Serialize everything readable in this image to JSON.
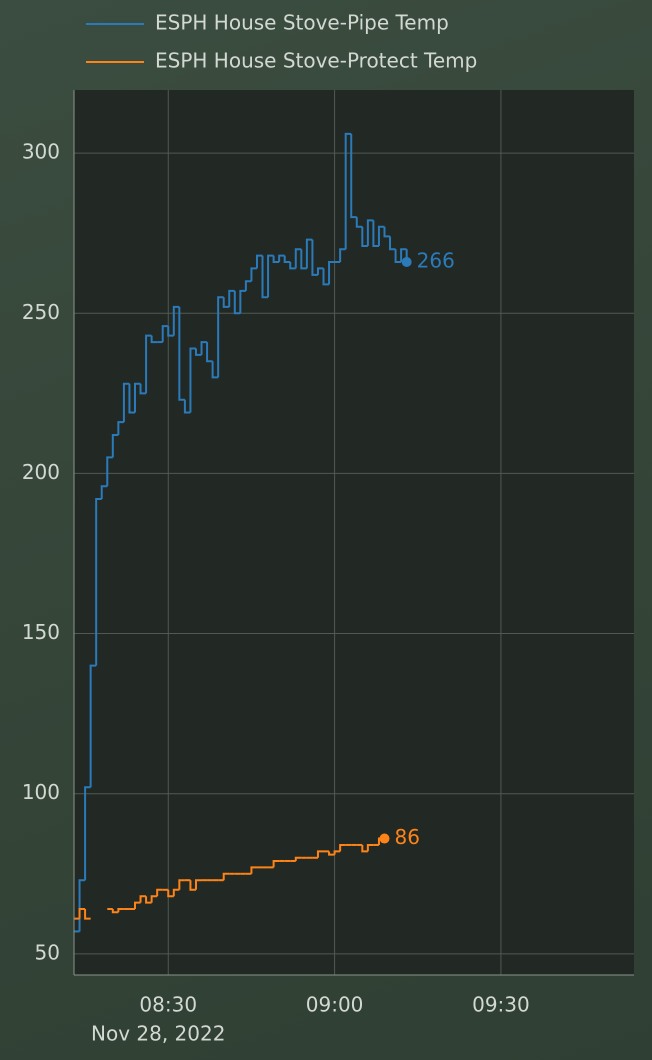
{
  "chart_data": {
    "type": "line",
    "step": true,
    "x": [
      "2022-11-28 08:13",
      "2022-11-28 08:14",
      "2022-11-28 08:15",
      "2022-11-28 08:16",
      "2022-11-28 08:17",
      "2022-11-28 08:18",
      "2022-11-28 08:19",
      "2022-11-28 08:20",
      "2022-11-28 08:21",
      "2022-11-28 08:22",
      "2022-11-28 08:23",
      "2022-11-28 08:24",
      "2022-11-28 08:25",
      "2022-11-28 08:26",
      "2022-11-28 08:27",
      "2022-11-28 08:28",
      "2022-11-28 08:29",
      "2022-11-28 08:30",
      "2022-11-28 08:31",
      "2022-11-28 08:32",
      "2022-11-28 08:33",
      "2022-11-28 08:34",
      "2022-11-28 08:35",
      "2022-11-28 08:36",
      "2022-11-28 08:37",
      "2022-11-28 08:38",
      "2022-11-28 08:39",
      "2022-11-28 08:40",
      "2022-11-28 08:41",
      "2022-11-28 08:42",
      "2022-11-28 08:43",
      "2022-11-28 08:44",
      "2022-11-28 08:45",
      "2022-11-28 08:46",
      "2022-11-28 08:47",
      "2022-11-28 08:48",
      "2022-11-28 08:49",
      "2022-11-28 08:50",
      "2022-11-28 08:51",
      "2022-11-28 08:52",
      "2022-11-28 08:53",
      "2022-11-28 08:54",
      "2022-11-28 08:55",
      "2022-11-28 08:56",
      "2022-11-28 08:57",
      "2022-11-28 08:58",
      "2022-11-28 08:59",
      "2022-11-28 09:00",
      "2022-11-28 09:01",
      "2022-11-28 09:02",
      "2022-11-28 09:03",
      "2022-11-28 09:04",
      "2022-11-28 09:05",
      "2022-11-28 09:06",
      "2022-11-28 09:07",
      "2022-11-28 09:08",
      "2022-11-28 09:09",
      "2022-11-28 09:10",
      "2022-11-28 09:11",
      "2022-11-28 09:12",
      "2022-11-28 09:13"
    ],
    "series": [
      {
        "name": "ESPH House Stove-Pipe Temp",
        "color": "#2b7bba",
        "values": [
          57,
          73,
          102,
          140,
          192,
          196,
          205,
          212,
          216,
          228,
          219,
          228,
          225,
          243,
          241,
          241,
          246,
          243,
          252,
          223,
          219,
          239,
          237,
          241,
          235,
          230,
          255,
          252,
          257,
          250,
          257,
          260,
          264,
          268,
          255,
          268,
          266,
          268,
          266,
          264,
          270,
          264,
          273,
          262,
          264,
          259,
          266,
          266,
          270,
          306,
          280,
          277,
          271,
          279,
          271,
          277,
          274,
          270,
          266,
          270,
          266
        ]
      },
      {
        "name": "ESPH House Stove-Protect Temp",
        "color": "#ff8418",
        "values": [
          61,
          64,
          61,
          61,
          null,
          null,
          64,
          63,
          64,
          64,
          64,
          66,
          68,
          66,
          68,
          70,
          70,
          68,
          70,
          73,
          73,
          70,
          73,
          73,
          73,
          73,
          73,
          75,
          75,
          75,
          75,
          75,
          77,
          77,
          77,
          77,
          79,
          79,
          79,
          79,
          80,
          80,
          80,
          80,
          82,
          82,
          81,
          82,
          84,
          84,
          84,
          84,
          82,
          84,
          84,
          86,
          86,
          null,
          null,
          null,
          null
        ]
      }
    ],
    "xlim": [
      "2022-11-28 08:13",
      "2022-11-28 09:54"
    ],
    "xticks": [
      {
        "value": "2022-11-28 08:30",
        "label": "08:30"
      },
      {
        "value": "2022-11-28 09:00",
        "label": "09:00"
      },
      {
        "value": "2022-11-28 09:30",
        "label": "09:30"
      }
    ],
    "x_date_label": "Nov 28, 2022",
    "ylim": [
      43.4,
      319.7
    ],
    "yticks": [
      50,
      100,
      150,
      200,
      250,
      300
    ],
    "grid": true,
    "legend": "top-left"
  }
}
